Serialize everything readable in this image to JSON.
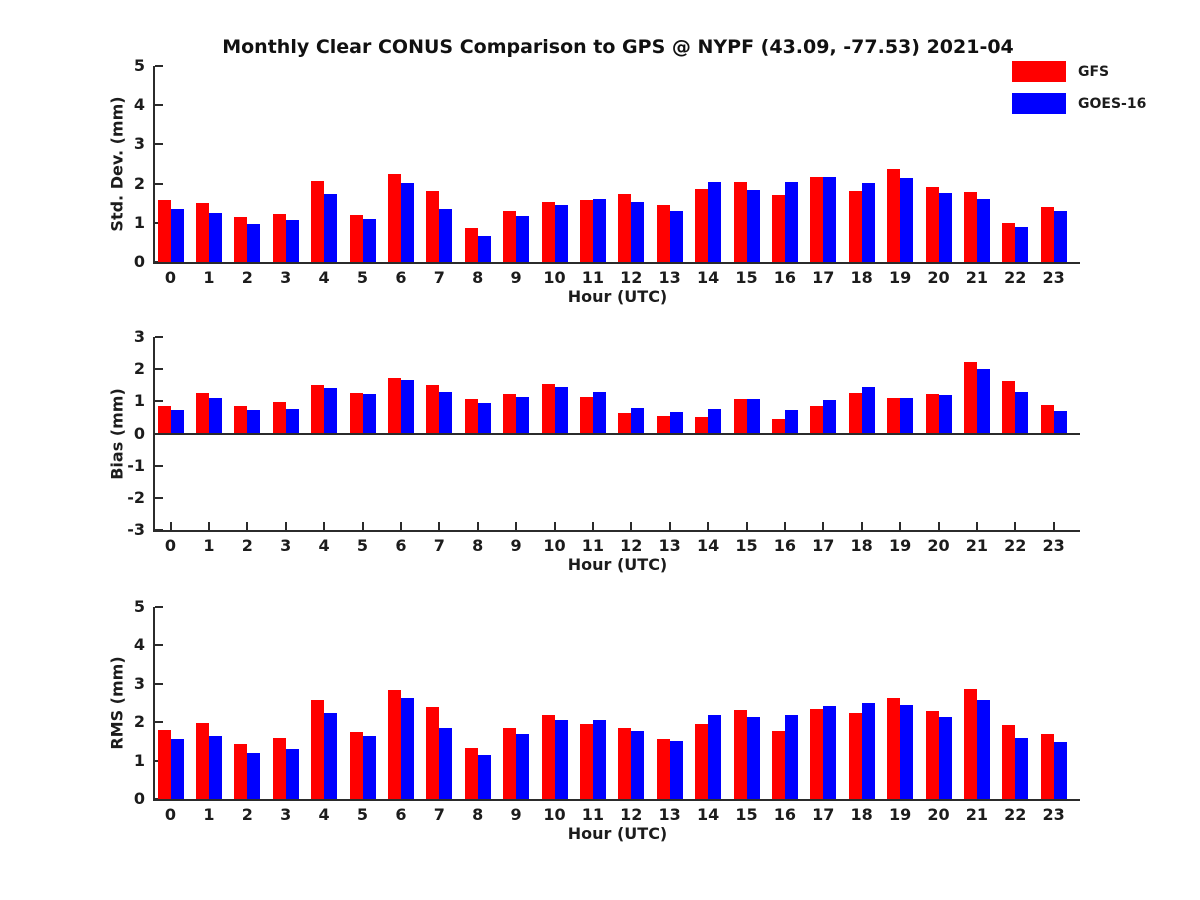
{
  "title": "Monthly Clear CONUS Comparison to GPS @ NYPF (43.09, -77.53) 2021-04",
  "legend": {
    "position": "top-right",
    "entries": [
      {
        "label": "GFS",
        "color": "#ff0000"
      },
      {
        "label": "GOES-16",
        "color": "#0000ff"
      }
    ]
  },
  "chart_data": [
    {
      "type": "bar",
      "title": "",
      "ylabel": "Std. Dev. (mm)",
      "xlabel": "Hour (UTC)",
      "ylim": [
        0,
        5
      ],
      "yticks": [
        0,
        1,
        2,
        3,
        4,
        5
      ],
      "grid": false,
      "categories": [
        "0",
        "1",
        "2",
        "3",
        "4",
        "5",
        "6",
        "7",
        "8",
        "9",
        "10",
        "11",
        "12",
        "13",
        "14",
        "15",
        "16",
        "17",
        "18",
        "19",
        "20",
        "21",
        "22",
        "23"
      ],
      "series": [
        {
          "name": "GFS",
          "color": "#ff0000",
          "values": [
            1.58,
            1.5,
            1.14,
            1.23,
            2.06,
            1.19,
            2.24,
            1.81,
            0.86,
            1.31,
            1.52,
            1.58,
            1.74,
            1.45,
            1.85,
            2.03,
            1.7,
            2.16,
            1.8,
            2.36,
            1.92,
            1.78,
            1.0,
            1.41
          ]
        },
        {
          "name": "GOES-16",
          "color": "#0000ff",
          "values": [
            1.35,
            1.26,
            0.96,
            1.07,
            1.74,
            1.1,
            2.02,
            1.35,
            0.66,
            1.18,
            1.45,
            1.61,
            1.52,
            1.31,
            2.03,
            1.83,
            2.03,
            2.16,
            2.01,
            2.15,
            1.76,
            1.6,
            0.9,
            1.29
          ]
        }
      ]
    },
    {
      "type": "bar",
      "title": "",
      "ylabel": "Bias (mm)",
      "xlabel": "Hour (UTC)",
      "ylim": [
        -3,
        3
      ],
      "yticks": [
        3,
        2,
        1,
        0,
        -1,
        -2,
        -3
      ],
      "grid": false,
      "categories": [
        "0",
        "1",
        "2",
        "3",
        "4",
        "5",
        "6",
        "7",
        "8",
        "9",
        "10",
        "11",
        "12",
        "13",
        "14",
        "15",
        "16",
        "17",
        "18",
        "19",
        "20",
        "21",
        "22",
        "23"
      ],
      "series": [
        {
          "name": "GFS",
          "color": "#ff0000",
          "values": [
            0.87,
            1.27,
            0.87,
            0.99,
            1.52,
            1.26,
            1.74,
            1.51,
            1.06,
            1.22,
            1.55,
            1.13,
            0.65,
            0.54,
            0.5,
            1.07,
            0.45,
            0.86,
            1.25,
            1.1,
            1.23,
            2.21,
            1.62,
            0.89
          ]
        },
        {
          "name": "GOES-16",
          "color": "#0000ff",
          "values": [
            0.73,
            1.09,
            0.72,
            0.76,
            1.4,
            1.24,
            1.66,
            1.28,
            0.95,
            1.15,
            1.46,
            1.28,
            0.78,
            0.66,
            0.75,
            1.07,
            0.73,
            1.04,
            1.44,
            1.1,
            1.2,
            2.02,
            1.28,
            0.7
          ]
        }
      ]
    },
    {
      "type": "bar",
      "title": "",
      "ylabel": "RMS (mm)",
      "xlabel": "Hour (UTC)",
      "ylim": [
        0,
        5
      ],
      "yticks": [
        0,
        1,
        2,
        3,
        4,
        5
      ],
      "grid": false,
      "categories": [
        "0",
        "1",
        "2",
        "3",
        "4",
        "5",
        "6",
        "7",
        "8",
        "9",
        "10",
        "11",
        "12",
        "13",
        "14",
        "15",
        "16",
        "17",
        "18",
        "19",
        "20",
        "21",
        "22",
        "23"
      ],
      "series": [
        {
          "name": "GFS",
          "color": "#ff0000",
          "values": [
            1.8,
            1.97,
            1.44,
            1.59,
            2.57,
            1.75,
            2.85,
            2.39,
            1.34,
            1.86,
            2.19,
            1.95,
            1.85,
            1.57,
            1.96,
            2.33,
            1.78,
            2.34,
            2.23,
            2.63,
            2.29,
            2.86,
            1.93,
            1.7
          ]
        },
        {
          "name": "GOES-16",
          "color": "#0000ff",
          "values": [
            1.57,
            1.64,
            1.2,
            1.31,
            2.24,
            1.64,
            2.63,
            1.85,
            1.15,
            1.7,
            2.07,
            2.06,
            1.76,
            1.52,
            2.19,
            2.14,
            2.19,
            2.43,
            2.51,
            2.46,
            2.14,
            2.58,
            1.6,
            1.49
          ]
        }
      ]
    }
  ]
}
